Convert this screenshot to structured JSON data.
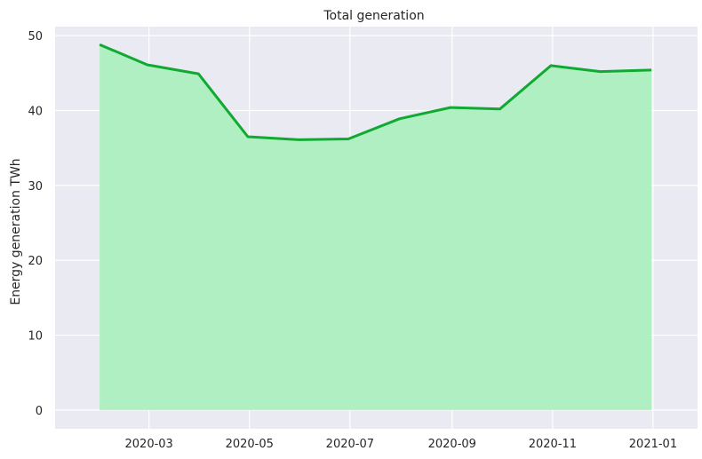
{
  "chart_data": {
    "type": "area",
    "title": "Total generation",
    "xlabel": "",
    "ylabel": "Energy generation TWh",
    "x": [
      "2020-01-31",
      "2020-02-29",
      "2020-03-31",
      "2020-04-30",
      "2020-05-31",
      "2020-06-30",
      "2020-07-31",
      "2020-08-31",
      "2020-09-30",
      "2020-10-31",
      "2020-11-30",
      "2020-12-31"
    ],
    "series": [
      {
        "values": [
          48.8,
          46.1,
          44.9,
          36.5,
          36.1,
          36.2,
          38.9,
          40.4,
          40.2,
          46.0,
          45.2,
          45.4
        ]
      }
    ],
    "xticks": [
      "2020-03",
      "2020-05",
      "2020-07",
      "2020-09",
      "2020-11",
      "2021-01"
    ],
    "yticks": [
      0,
      10,
      20,
      30,
      40,
      50
    ],
    "xlim": [
      "2020-01-04",
      "2021-01-28"
    ],
    "ylim": [
      -2.5,
      51.2
    ],
    "grid": true,
    "colors": {
      "background": "#eaeaf2",
      "grid": "#ffffff",
      "line": "#10aa32",
      "fill": "#b0efc2"
    }
  }
}
